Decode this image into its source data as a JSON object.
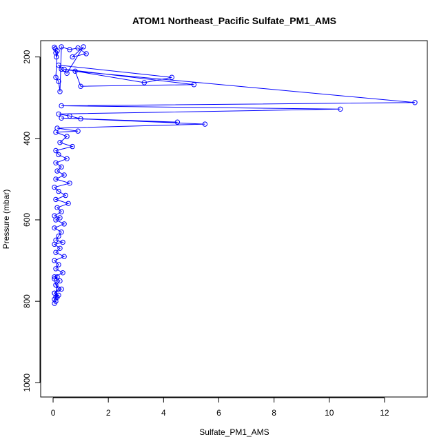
{
  "chart_data": {
    "type": "line",
    "title": "ATOM1 Northeast_Pacific Sulfate_PM1_AMS",
    "xlabel": "Sulfate_PM1_AMS",
    "ylabel": "Pressure (mbar)",
    "x_ticks": [
      0,
      2,
      4,
      6,
      8,
      10,
      12
    ],
    "y_ticks": [
      200,
      400,
      600,
      800,
      1000
    ],
    "xlim": [
      -0.45,
      13.55
    ],
    "ylim": [
      1035,
      160
    ],
    "y_reversed": true,
    "grid": false,
    "legend": "none",
    "series": [
      {
        "color": "#0000ff",
        "marker": "open-circle",
        "x": [
          0.05,
          0.08,
          0.1,
          0.12,
          0.15,
          0.1,
          0.2,
          0.25,
          0.3,
          0.6,
          0.9,
          1.2,
          0.7,
          1.1,
          0.5,
          0.3,
          0.2,
          4.3,
          3.3,
          0.4,
          5.1,
          1.0,
          0.8,
          13.1,
          0.3,
          10.4,
          0.2,
          0.6,
          1.0,
          4.5,
          0.3,
          5.5,
          0.15,
          0.9,
          0.1,
          0.5,
          0.25,
          0.7,
          0.1,
          0.2,
          0.5,
          0.1,
          0.3,
          0.15,
          0.4,
          0.1,
          0.6,
          0.05,
          0.2,
          0.45,
          0.1,
          0.55,
          0.15,
          0.3,
          0.05,
          0.25,
          0.1,
          0.4,
          0.05,
          0.3,
          0.2,
          0.1,
          0.35,
          0.05,
          0.25,
          0.1,
          0.4,
          0.05,
          0.2,
          0.1,
          0.35,
          0.05,
          0.25,
          0.1,
          0.3,
          0.05,
          0.2,
          0.1,
          0.15,
          0.05,
          0.1,
          0.2,
          0.05,
          0.15,
          0.05,
          0.1,
          0.05
        ],
        "y": [
          176,
          180,
          190,
          200,
          185,
          250,
          260,
          285,
          175,
          182,
          178,
          192,
          200,
          175,
          240,
          230,
          220,
          250,
          263,
          230,
          268,
          272,
          235,
          312,
          320,
          328,
          340,
          345,
          352,
          360,
          350,
          365,
          375,
          382,
          385,
          395,
          410,
          420,
          430,
          440,
          450,
          460,
          470,
          480,
          490,
          500,
          510,
          520,
          530,
          540,
          550,
          560,
          570,
          580,
          590,
          595,
          600,
          610,
          620,
          630,
          640,
          650,
          655,
          660,
          670,
          680,
          690,
          700,
          710,
          720,
          730,
          740,
          750,
          760,
          770,
          780,
          785,
          790,
          740,
          745,
          760,
          770,
          780,
          790,
          795,
          800,
          805
        ]
      }
    ]
  }
}
